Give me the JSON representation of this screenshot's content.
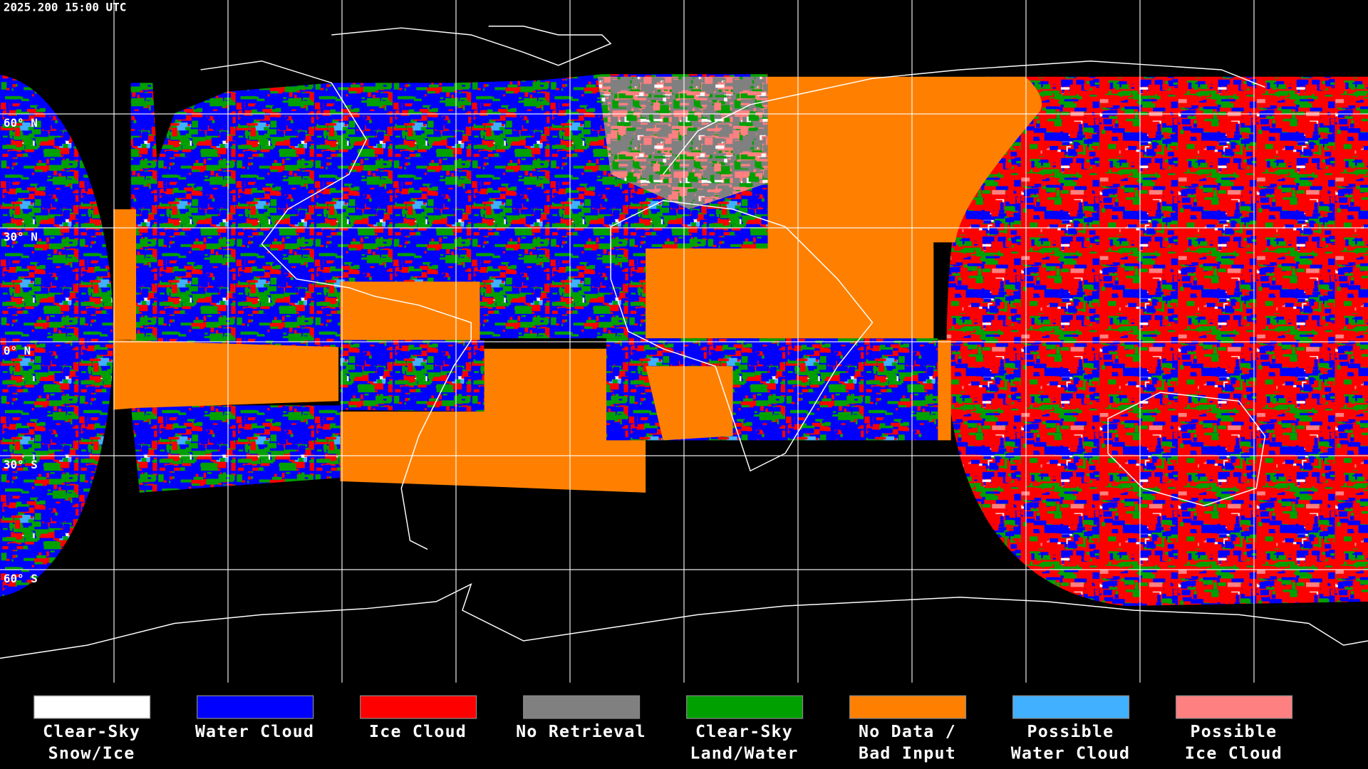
{
  "timestamp": "2025.200 15:00 UTC",
  "latitude_labels": [
    "60° N",
    "30° N",
    "0° N",
    "30° S",
    "60° S"
  ],
  "legend": [
    {
      "label": [
        "Clear-Sky",
        "Snow/Ice"
      ],
      "color": "#ffffff"
    },
    {
      "label": [
        "Water Cloud"
      ],
      "color": "#0000ff"
    },
    {
      "label": [
        "Ice Cloud"
      ],
      "color": "#ff0000"
    },
    {
      "label": [
        "No Retrieval"
      ],
      "color": "#808080"
    },
    {
      "label": [
        "Clear-Sky",
        "Land/Water"
      ],
      "color": "#00a000"
    },
    {
      "label": [
        "No Data /",
        "Bad Input"
      ],
      "color": "#ff8000"
    },
    {
      "label": [
        "Possible",
        "Water Cloud"
      ],
      "color": "#40b0ff"
    },
    {
      "label": [
        "Possible",
        "Ice Cloud"
      ],
      "color": "#ff8080"
    }
  ]
}
